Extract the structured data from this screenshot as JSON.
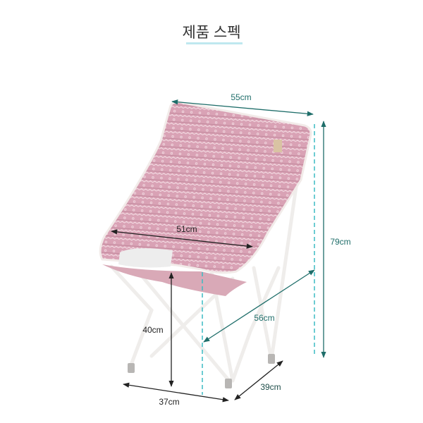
{
  "title": "제품 스펙",
  "colors": {
    "accent_teal": "#1f6e6a",
    "dashed_teal": "#3bbcc4",
    "fabric_pink": "#d8a1b4",
    "frame_white": "#f2f0ee"
  },
  "dimensions": {
    "width_top": "55cm",
    "height_total": "79cm",
    "depth": "56cm",
    "foot_depth": "39cm",
    "foot_width": "37cm",
    "seat_height": "40cm",
    "seat_width": "51cm"
  }
}
